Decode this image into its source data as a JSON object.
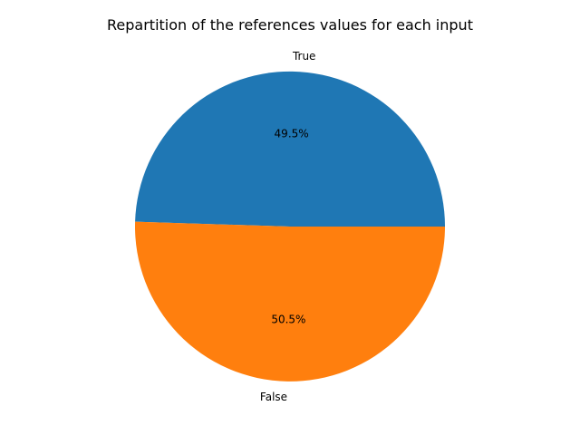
{
  "chart_data": {
    "type": "pie",
    "title": "Repartition of the references values for each input",
    "slices": [
      {
        "label": "True",
        "percent": 49.5,
        "percent_label": "49.5%",
        "color": "#1f77b4"
      },
      {
        "label": "False",
        "percent": 50.5,
        "percent_label": "50.5%",
        "color": "#ff7f0e"
      }
    ],
    "start_angle_deg": 0,
    "direction": "counterclockwise",
    "legend": "none"
  }
}
